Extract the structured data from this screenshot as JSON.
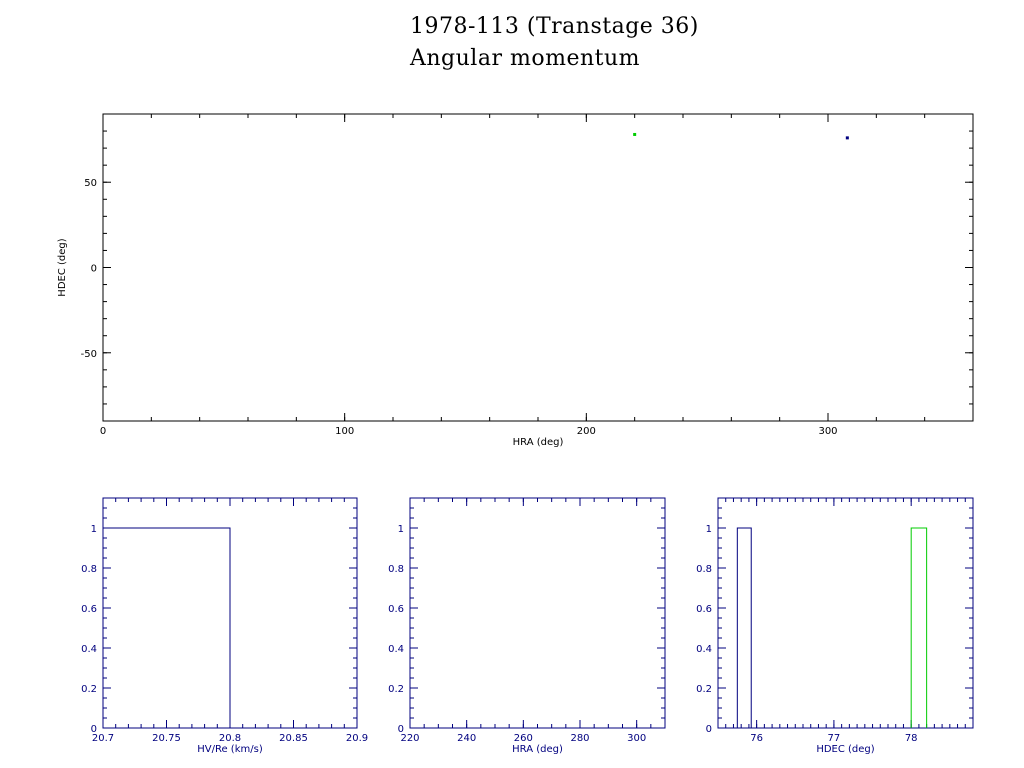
{
  "title": "1978-113 (Transtage 36)",
  "subtitle": "Angular momentum",
  "colors": {
    "axes_main": "#000000",
    "axes_hist": "#00007f",
    "series_a": "#00007f",
    "series_b": "#00cc00"
  },
  "chart_data": [
    {
      "type": "scatter",
      "xlabel": "HRA (deg)",
      "ylabel": "HDEC (deg)",
      "xlim": [
        0,
        360
      ],
      "ylim": [
        -90,
        90
      ],
      "xticks": [
        0,
        100,
        200,
        300
      ],
      "yticks": [
        -50,
        0,
        50
      ],
      "points": [
        {
          "x": 220,
          "y": 78,
          "color": "#00cc00"
        },
        {
          "x": 308,
          "y": 76,
          "color": "#00007f"
        }
      ]
    },
    {
      "type": "bar",
      "xlabel": "HV/Re (km/s)",
      "ylabel": "",
      "xlim": [
        20.7,
        20.9
      ],
      "ylim": [
        0,
        1.15
      ],
      "xticks": [
        "20.7",
        "20.75",
        "20.8",
        "20.85",
        "20.9"
      ],
      "yticks": [
        "0",
        "0.2",
        "0.4",
        "0.6",
        "0.8",
        "1"
      ],
      "bars": [
        {
          "x0": 20.7,
          "x1": 20.8,
          "value": 1,
          "color": "#00007f"
        }
      ]
    },
    {
      "type": "bar",
      "xlabel": "HRA (deg)",
      "ylabel": "",
      "xlim": [
        220,
        310
      ],
      "ylim": [
        0,
        1.15
      ],
      "xticks": [
        "220",
        "240",
        "260",
        "280",
        "300"
      ],
      "yticks": [
        "0",
        "0.2",
        "0.4",
        "0.6",
        "0.8",
        "1"
      ],
      "bars": []
    },
    {
      "type": "bar",
      "xlabel": "HDEC (deg)",
      "ylabel": "",
      "xlim": [
        75.5,
        78.8
      ],
      "ylim": [
        0,
        1.15
      ],
      "xticks": [
        "76",
        "77",
        "78"
      ],
      "yticks": [
        "0",
        "0.2",
        "0.4",
        "0.6",
        "0.8",
        "1"
      ],
      "bars": [
        {
          "x0": 75.75,
          "x1": 75.93,
          "value": 1,
          "color": "#00007f"
        },
        {
          "x0": 78.0,
          "x1": 78.2,
          "value": 1,
          "color": "#00cc00"
        }
      ]
    }
  ]
}
